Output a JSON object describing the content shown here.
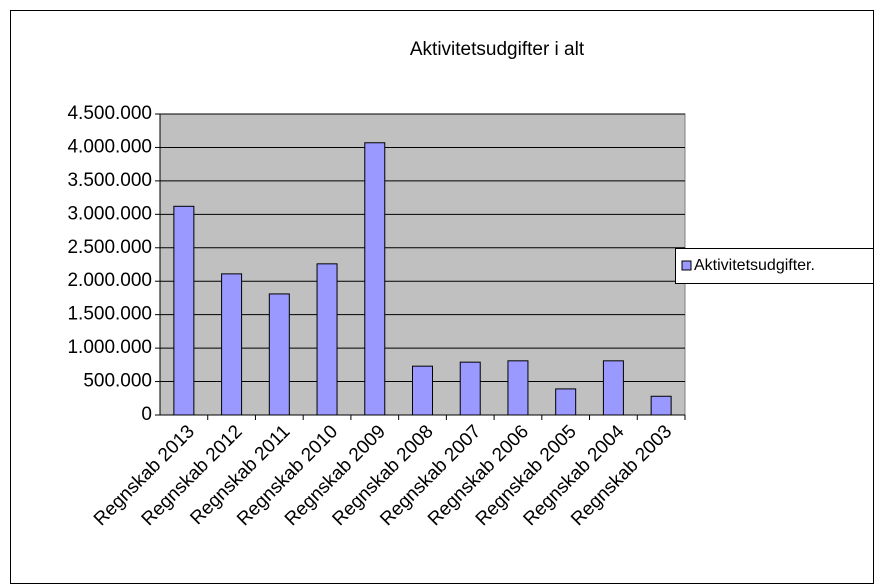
{
  "chart_data": {
    "type": "bar",
    "title": "Aktivitetsudgifter i alt",
    "categories": [
      "Regnskab 2013",
      "Regnskab 2012",
      "Regnskab 2011",
      "Regnskab 2010",
      "Regnskab 2009",
      "Regnskab 2008",
      "Regnskab 2007",
      "Regnskab 2006",
      "Regnskab 2005",
      "Regnskab 2004",
      "Regnskab 2003"
    ],
    "series": [
      {
        "name": "Aktivitetsudgifter.",
        "color": "#9999ff",
        "values": [
          3120000,
          2110000,
          1810000,
          2260000,
          4070000,
          730000,
          790000,
          810000,
          390000,
          810000,
          280000
        ]
      }
    ],
    "ylim": [
      0,
      4500000
    ],
    "yticks": [
      0,
      {
        "value": 500000,
        "label": "500.000"
      },
      {
        "value": 1000000,
        "label": "1.000.000"
      },
      {
        "value": 1500000,
        "label": "1.500.000"
      },
      {
        "value": 2000000,
        "label": "2.000.000"
      },
      {
        "value": 2500000,
        "label": "2.500.000"
      },
      {
        "value": 3000000,
        "label": "3.000.000"
      },
      {
        "value": 3500000,
        "label": "3.500.000"
      },
      {
        "value": 4000000,
        "label": "4.000.000"
      },
      {
        "value": 4500000,
        "label": "4.500.000"
      }
    ],
    "grid": true,
    "legend": "right"
  }
}
